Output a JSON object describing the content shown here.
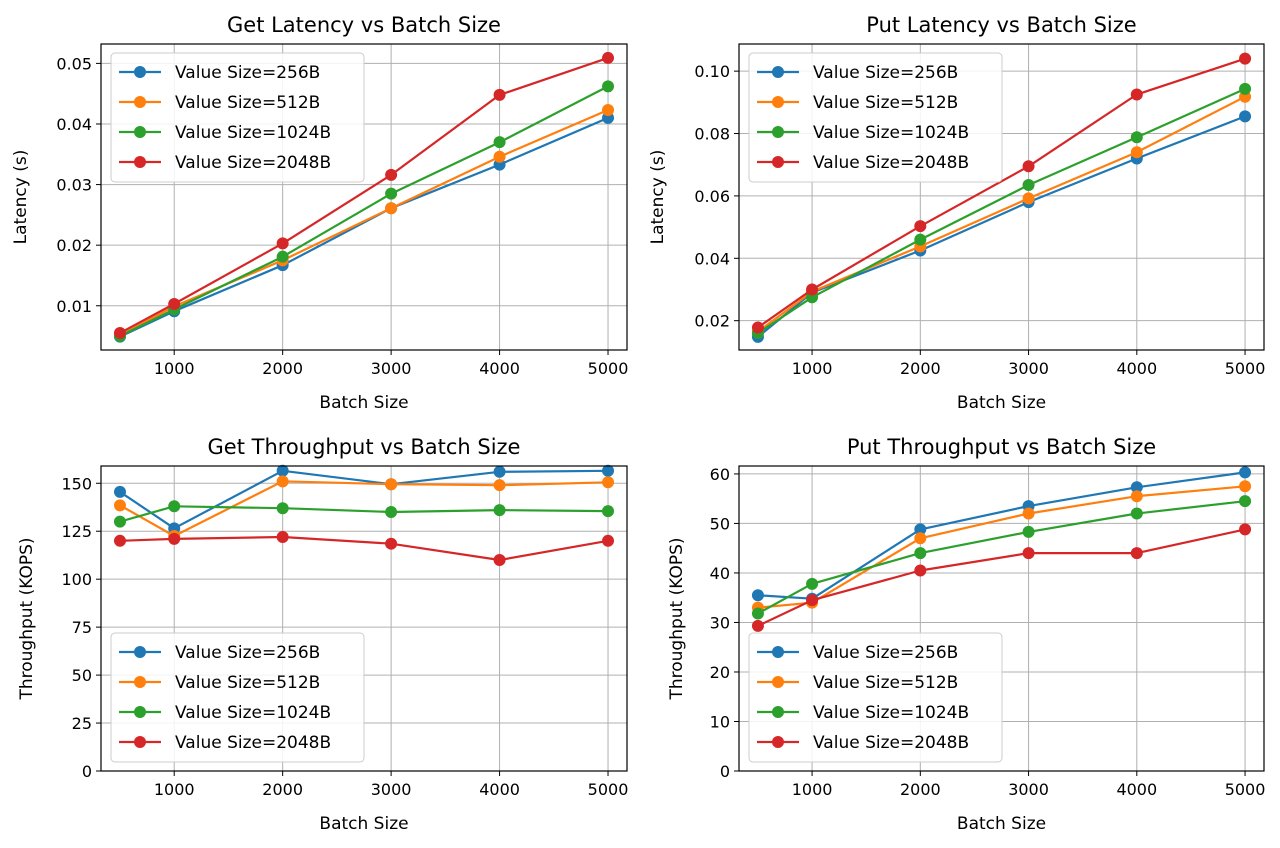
{
  "chart_data": [
    {
      "type": "line",
      "title": "Get Latency vs Batch Size",
      "xlabel": "Batch Size",
      "ylabel": "Latency (s)",
      "x": [
        500,
        1000,
        2000,
        3000,
        4000,
        5000
      ],
      "xlim": [
        325,
        5175
      ],
      "ylim": [
        0.0027,
        0.0532
      ],
      "xticks": [
        1000,
        2000,
        3000,
        4000,
        5000
      ],
      "yticks": [
        0.01,
        0.02,
        0.03,
        0.04,
        0.05
      ],
      "ytick_labels": [
        "0.01",
        "0.02",
        "0.03",
        "0.04",
        "0.05"
      ],
      "grid": true,
      "legend_loc": "upper-left",
      "series": [
        {
          "name": "Value Size=256B",
          "color": "#1f77b4",
          "values": [
            0.0049,
            0.0091,
            0.0167,
            0.0261,
            0.0333,
            0.041
          ]
        },
        {
          "name": "Value Size=512B",
          "color": "#ff7f0e",
          "values": [
            0.0051,
            0.0099,
            0.0175,
            0.0261,
            0.0346,
            0.0423
          ]
        },
        {
          "name": "Value Size=1024B",
          "color": "#2ca02c",
          "values": [
            0.005,
            0.0094,
            0.0181,
            0.0285,
            0.037,
            0.0462
          ]
        },
        {
          "name": "Value Size=2048B",
          "color": "#d62728",
          "values": [
            0.0055,
            0.0103,
            0.0203,
            0.0316,
            0.0448,
            0.0509
          ]
        }
      ]
    },
    {
      "type": "line",
      "title": "Put Latency vs Batch Size",
      "xlabel": "Batch Size",
      "ylabel": "Latency (s)",
      "x": [
        500,
        1000,
        2000,
        3000,
        4000,
        5000
      ],
      "xlim": [
        325,
        5175
      ],
      "ylim": [
        0.0106,
        0.1087
      ],
      "xticks": [
        1000,
        2000,
        3000,
        4000,
        5000
      ],
      "yticks": [
        0.02,
        0.04,
        0.06,
        0.08,
        0.1
      ],
      "ytick_labels": [
        "0.02",
        "0.04",
        "0.06",
        "0.08",
        "0.10"
      ],
      "grid": true,
      "legend_loc": "upper-left",
      "series": [
        {
          "name": "Value Size=256B",
          "color": "#1f77b4",
          "values": [
            0.0148,
            0.029,
            0.0425,
            0.058,
            0.072,
            0.0855
          ]
        },
        {
          "name": "Value Size=512B",
          "color": "#ff7f0e",
          "values": [
            0.0165,
            0.0293,
            0.0438,
            0.0592,
            0.074,
            0.0918
          ]
        },
        {
          "name": "Value Size=1024B",
          "color": "#2ca02c",
          "values": [
            0.016,
            0.0275,
            0.046,
            0.0635,
            0.0788,
            0.0943
          ]
        },
        {
          "name": "Value Size=2048B",
          "color": "#d62728",
          "values": [
            0.0178,
            0.03,
            0.0503,
            0.0695,
            0.0925,
            0.104
          ]
        }
      ]
    },
    {
      "type": "line",
      "title": "Get Throughput vs Batch Size",
      "xlabel": "Batch Size",
      "ylabel": "Throughput (KOPS)",
      "x": [
        500,
        1000,
        2000,
        3000,
        4000,
        5000
      ],
      "xlim": [
        325,
        5175
      ],
      "ylim": [
        0,
        159
      ],
      "xticks": [
        1000,
        2000,
        3000,
        4000,
        5000
      ],
      "yticks": [
        0,
        25,
        50,
        75,
        100,
        125,
        150
      ],
      "ytick_labels": [
        "0",
        "25",
        "50",
        "75",
        "100",
        "125",
        "150"
      ],
      "grid": true,
      "legend_loc": "lower-left",
      "series": [
        {
          "name": "Value Size=256B",
          "color": "#1f77b4",
          "values": [
            145.5,
            126.5,
            156.5,
            149.5,
            156.0,
            156.5
          ]
        },
        {
          "name": "Value Size=512B",
          "color": "#ff7f0e",
          "values": [
            138.5,
            122.5,
            151.0,
            149.5,
            149.0,
            150.5
          ]
        },
        {
          "name": "Value Size=1024B",
          "color": "#2ca02c",
          "values": [
            130.0,
            138.0,
            137.0,
            135.0,
            136.0,
            135.5
          ]
        },
        {
          "name": "Value Size=2048B",
          "color": "#d62728",
          "values": [
            120.0,
            121.0,
            122.0,
            118.5,
            110.0,
            120.0
          ]
        }
      ]
    },
    {
      "type": "line",
      "title": "Put Throughput vs Batch Size",
      "xlabel": "Batch Size",
      "ylabel": "Throughput (KOPS)",
      "x": [
        500,
        1000,
        2000,
        3000,
        4000,
        5000
      ],
      "xlim": [
        325,
        5175
      ],
      "ylim": [
        0,
        61.6
      ],
      "xticks": [
        1000,
        2000,
        3000,
        4000,
        5000
      ],
      "yticks": [
        0,
        10,
        20,
        30,
        40,
        50,
        60
      ],
      "ytick_labels": [
        "0",
        "10",
        "20",
        "30",
        "40",
        "50",
        "60"
      ],
      "grid": true,
      "legend_loc": "lower-left",
      "series": [
        {
          "name": "Value Size=256B",
          "color": "#1f77b4",
          "values": [
            35.5,
            34.8,
            48.8,
            53.5,
            57.3,
            60.3
          ]
        },
        {
          "name": "Value Size=512B",
          "color": "#ff7f0e",
          "values": [
            33.0,
            34.0,
            47.0,
            52.0,
            55.5,
            57.5
          ]
        },
        {
          "name": "Value Size=1024B",
          "color": "#2ca02c",
          "values": [
            31.8,
            37.8,
            44.0,
            48.3,
            52.0,
            54.5
          ]
        },
        {
          "name": "Value Size=2048B",
          "color": "#d62728",
          "values": [
            29.3,
            34.5,
            40.5,
            44.0,
            44.0,
            48.8
          ]
        }
      ]
    }
  ]
}
